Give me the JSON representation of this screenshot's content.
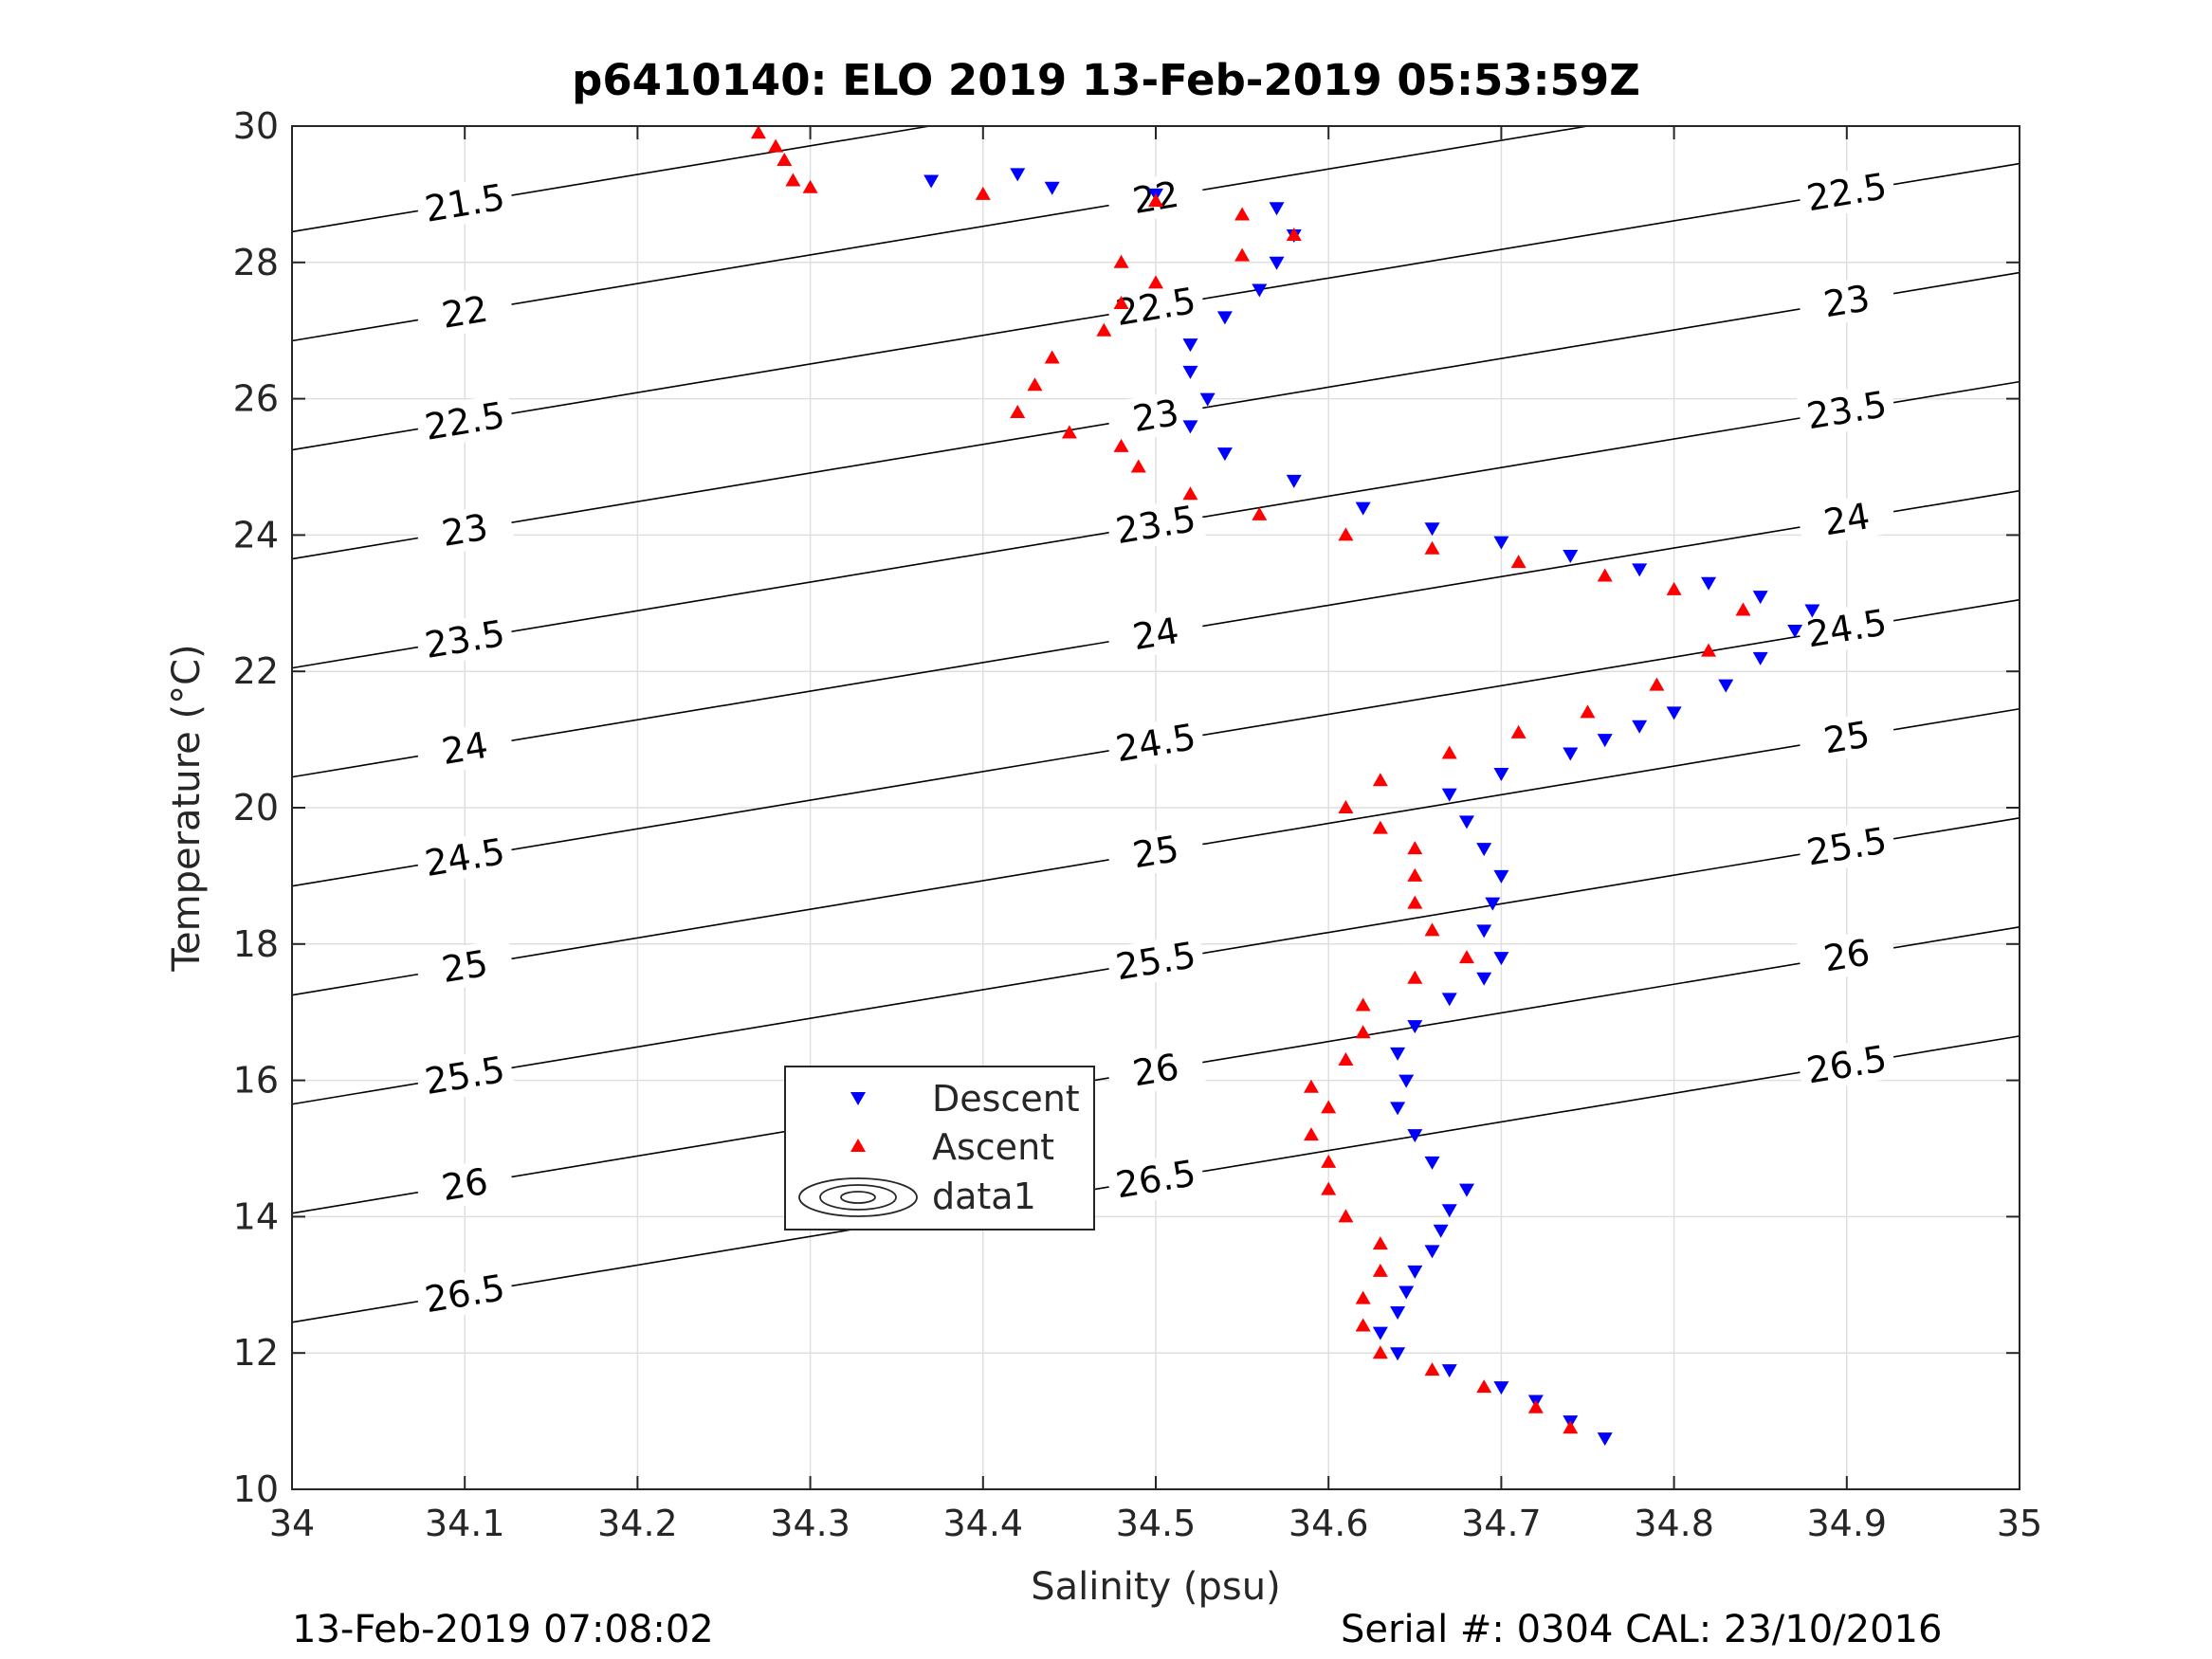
{
  "chart_data": {
    "type": "scatter",
    "title": "p6410140: ELO 2019 13-Feb-2019 05:53:59Z",
    "xlabel": "Salinity (psu)",
    "ylabel": "Temperature (°C)",
    "xlim": [
      34,
      35
    ],
    "ylim": [
      10,
      30
    ],
    "xticks": [
      "34",
      "34.1",
      "34.2",
      "34.3",
      "34.4",
      "34.5",
      "34.6",
      "34.7",
      "34.8",
      "34.9",
      "35"
    ],
    "yticks": [
      "10",
      "12",
      "14",
      "16",
      "18",
      "20",
      "22",
      "24",
      "26",
      "28",
      "30"
    ],
    "grid": true,
    "legend": {
      "position": "lower-left inside axes",
      "entries": [
        {
          "label": "Descent",
          "marker": "triangle-down",
          "color": "#0000ff"
        },
        {
          "label": "Ascent",
          "marker": "triangle-up",
          "color": "#ff0000"
        },
        {
          "label": "data1",
          "marker": "contour"
        }
      ]
    },
    "series": [
      {
        "name": "Descent",
        "marker": "triangle-down",
        "color": "#0000ff",
        "points": [
          [
            34.76,
            10.75
          ],
          [
            34.74,
            11.0
          ],
          [
            34.72,
            11.3
          ],
          [
            34.7,
            11.5
          ],
          [
            34.67,
            11.75
          ],
          [
            34.64,
            12.0
          ],
          [
            34.63,
            12.3
          ],
          [
            34.64,
            12.6
          ],
          [
            34.645,
            12.9
          ],
          [
            34.65,
            13.2
          ],
          [
            34.66,
            13.5
          ],
          [
            34.665,
            13.8
          ],
          [
            34.67,
            14.1
          ],
          [
            34.68,
            14.4
          ],
          [
            34.66,
            14.8
          ],
          [
            34.65,
            15.2
          ],
          [
            34.64,
            15.6
          ],
          [
            34.645,
            16.0
          ],
          [
            34.64,
            16.4
          ],
          [
            34.65,
            16.8
          ],
          [
            34.67,
            17.2
          ],
          [
            34.69,
            17.5
          ],
          [
            34.7,
            17.8
          ],
          [
            34.69,
            18.2
          ],
          [
            34.695,
            18.6
          ],
          [
            34.7,
            19.0
          ],
          [
            34.69,
            19.4
          ],
          [
            34.68,
            19.8
          ],
          [
            34.67,
            20.2
          ],
          [
            34.7,
            20.5
          ],
          [
            34.74,
            20.8
          ],
          [
            34.76,
            21.0
          ],
          [
            34.78,
            21.2
          ],
          [
            34.8,
            21.4
          ],
          [
            34.83,
            21.8
          ],
          [
            34.85,
            22.2
          ],
          [
            34.87,
            22.6
          ],
          [
            34.88,
            22.9
          ],
          [
            34.85,
            23.1
          ],
          [
            34.82,
            23.3
          ],
          [
            34.78,
            23.5
          ],
          [
            34.74,
            23.7
          ],
          [
            34.7,
            23.9
          ],
          [
            34.66,
            24.1
          ],
          [
            34.62,
            24.4
          ],
          [
            34.58,
            24.8
          ],
          [
            34.54,
            25.2
          ],
          [
            34.52,
            25.6
          ],
          [
            34.53,
            26.0
          ],
          [
            34.52,
            26.4
          ],
          [
            34.52,
            26.8
          ],
          [
            34.54,
            27.2
          ],
          [
            34.56,
            27.6
          ],
          [
            34.57,
            28.0
          ],
          [
            34.58,
            28.4
          ],
          [
            34.57,
            28.8
          ],
          [
            34.5,
            29.0
          ],
          [
            34.44,
            29.1
          ],
          [
            34.37,
            29.2
          ],
          [
            34.42,
            29.3
          ]
        ]
      },
      {
        "name": "Ascent",
        "marker": "triangle-up",
        "color": "#ff0000",
        "points": [
          [
            34.74,
            10.9
          ],
          [
            34.72,
            11.2
          ],
          [
            34.69,
            11.5
          ],
          [
            34.66,
            11.75
          ],
          [
            34.63,
            12.0
          ],
          [
            34.62,
            12.4
          ],
          [
            34.62,
            12.8
          ],
          [
            34.63,
            13.2
          ],
          [
            34.63,
            13.6
          ],
          [
            34.61,
            14.0
          ],
          [
            34.6,
            14.4
          ],
          [
            34.6,
            14.8
          ],
          [
            34.59,
            15.2
          ],
          [
            34.6,
            15.6
          ],
          [
            34.59,
            15.9
          ],
          [
            34.61,
            16.3
          ],
          [
            34.62,
            16.7
          ],
          [
            34.62,
            17.1
          ],
          [
            34.65,
            17.5
          ],
          [
            34.68,
            17.8
          ],
          [
            34.66,
            18.2
          ],
          [
            34.65,
            18.6
          ],
          [
            34.65,
            19.0
          ],
          [
            34.65,
            19.4
          ],
          [
            34.63,
            19.7
          ],
          [
            34.61,
            20.0
          ],
          [
            34.63,
            20.4
          ],
          [
            34.67,
            20.8
          ],
          [
            34.71,
            21.1
          ],
          [
            34.75,
            21.4
          ],
          [
            34.79,
            21.8
          ],
          [
            34.82,
            22.3
          ],
          [
            34.84,
            22.9
          ],
          [
            34.8,
            23.2
          ],
          [
            34.76,
            23.4
          ],
          [
            34.71,
            23.6
          ],
          [
            34.66,
            23.8
          ],
          [
            34.61,
            24.0
          ],
          [
            34.56,
            24.3
          ],
          [
            34.52,
            24.6
          ],
          [
            34.49,
            25.0
          ],
          [
            34.48,
            25.3
          ],
          [
            34.45,
            25.5
          ],
          [
            34.42,
            25.8
          ],
          [
            34.43,
            26.2
          ],
          [
            34.44,
            26.6
          ],
          [
            34.47,
            27.0
          ],
          [
            34.48,
            27.4
          ],
          [
            34.5,
            27.7
          ],
          [
            34.48,
            28.0
          ],
          [
            34.55,
            28.1
          ],
          [
            34.58,
            28.4
          ],
          [
            34.55,
            28.7
          ],
          [
            34.5,
            28.9
          ],
          [
            34.4,
            29.0
          ],
          [
            34.3,
            29.1
          ],
          [
            34.29,
            29.2
          ],
          [
            34.285,
            29.5
          ],
          [
            34.28,
            29.7
          ],
          [
            34.27,
            29.9
          ]
        ]
      }
    ],
    "isopycnals": {
      "values": [
        "21.5",
        "22",
        "22.5",
        "23",
        "23.5",
        "24",
        "24.5",
        "25",
        "25.5",
        "26",
        "26.5"
      ],
      "color": "#000000"
    }
  },
  "footer": {
    "timestamp": "13-Feb-2019 07:08:02",
    "serial": "Serial #: 0304  CAL: 23/10/2016"
  }
}
